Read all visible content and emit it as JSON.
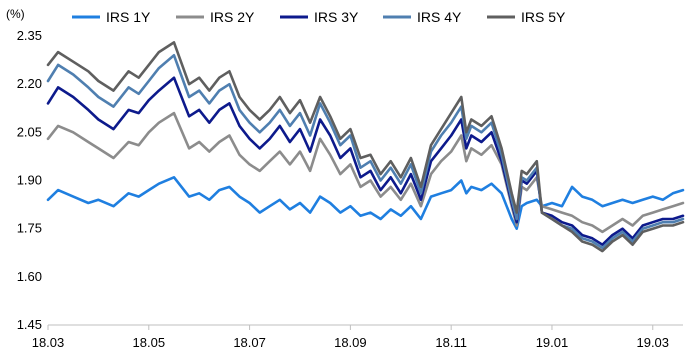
{
  "chart_data": {
    "type": "line",
    "unit_label": "(%)",
    "yticks": [
      "2.35",
      "2.20",
      "2.05",
      "1.90",
      "1.75",
      "1.60",
      "1.45"
    ],
    "ylim": [
      1.45,
      2.35
    ],
    "xticks": [
      "18.03",
      "18.05",
      "18.07",
      "18.09",
      "18.11",
      "19.01",
      "19.03"
    ],
    "xlim": [
      0,
      12.6
    ],
    "legend_position": "top",
    "grid": false,
    "series": [
      {
        "name": "IRS 1Y",
        "color": "#1f7fe0",
        "x": [
          0,
          0.2,
          0.5,
          0.8,
          1.0,
          1.3,
          1.6,
          1.8,
          2.0,
          2.2,
          2.5,
          2.8,
          3.0,
          3.2,
          3.4,
          3.6,
          3.8,
          4.0,
          4.2,
          4.4,
          4.6,
          4.8,
          5.0,
          5.2,
          5.4,
          5.6,
          5.8,
          6.0,
          6.2,
          6.4,
          6.6,
          6.8,
          7.0,
          7.2,
          7.4,
          7.6,
          7.8,
          8.0,
          8.2,
          8.3,
          8.4,
          8.6,
          8.8,
          9.0,
          9.2,
          9.3,
          9.4,
          9.5,
          9.7,
          9.8,
          10.0,
          10.2,
          10.4,
          10.6,
          10.8,
          11.0,
          11.2,
          11.4,
          11.6,
          11.8,
          12.0,
          12.2,
          12.4,
          12.6
        ],
        "values": [
          1.84,
          1.87,
          1.85,
          1.83,
          1.84,
          1.82,
          1.86,
          1.85,
          1.87,
          1.89,
          1.91,
          1.85,
          1.86,
          1.84,
          1.87,
          1.88,
          1.85,
          1.83,
          1.8,
          1.82,
          1.84,
          1.81,
          1.83,
          1.8,
          1.85,
          1.83,
          1.8,
          1.82,
          1.79,
          1.8,
          1.78,
          1.81,
          1.79,
          1.82,
          1.78,
          1.85,
          1.86,
          1.87,
          1.9,
          1.86,
          1.88,
          1.87,
          1.89,
          1.86,
          1.78,
          1.75,
          1.82,
          1.83,
          1.84,
          1.82,
          1.83,
          1.82,
          1.88,
          1.85,
          1.84,
          1.82,
          1.83,
          1.84,
          1.83,
          1.84,
          1.85,
          1.84,
          1.86,
          1.87
        ]
      },
      {
        "name": "IRS 2Y",
        "color": "#8c8c8c",
        "x": [
          0,
          0.2,
          0.5,
          0.8,
          1.0,
          1.3,
          1.6,
          1.8,
          2.0,
          2.2,
          2.5,
          2.8,
          3.0,
          3.2,
          3.4,
          3.6,
          3.8,
          4.0,
          4.2,
          4.4,
          4.6,
          4.8,
          5.0,
          5.2,
          5.4,
          5.6,
          5.8,
          6.0,
          6.2,
          6.4,
          6.6,
          6.8,
          7.0,
          7.2,
          7.4,
          7.6,
          7.8,
          8.0,
          8.2,
          8.3,
          8.4,
          8.6,
          8.8,
          9.0,
          9.2,
          9.3,
          9.4,
          9.5,
          9.7,
          9.8,
          10.0,
          10.2,
          10.4,
          10.6,
          10.8,
          11.0,
          11.2,
          11.4,
          11.6,
          11.8,
          12.0,
          12.2,
          12.4,
          12.6
        ],
        "values": [
          2.03,
          2.07,
          2.05,
          2.02,
          2.0,
          1.97,
          2.02,
          2.01,
          2.05,
          2.08,
          2.11,
          2.0,
          2.02,
          1.99,
          2.02,
          2.04,
          1.98,
          1.95,
          1.93,
          1.96,
          1.99,
          1.95,
          1.99,
          1.93,
          2.03,
          1.98,
          1.92,
          1.95,
          1.88,
          1.9,
          1.85,
          1.88,
          1.84,
          1.89,
          1.82,
          1.92,
          1.96,
          1.99,
          2.04,
          1.96,
          2.0,
          1.98,
          2.01,
          1.95,
          1.82,
          1.76,
          1.88,
          1.87,
          1.91,
          1.82,
          1.81,
          1.8,
          1.79,
          1.77,
          1.76,
          1.74,
          1.76,
          1.78,
          1.76,
          1.79,
          1.8,
          1.81,
          1.82,
          1.83
        ]
      },
      {
        "name": "IRS 3Y",
        "color": "#0d1a8c",
        "x": [
          0,
          0.2,
          0.5,
          0.8,
          1.0,
          1.3,
          1.6,
          1.8,
          2.0,
          2.2,
          2.5,
          2.8,
          3.0,
          3.2,
          3.4,
          3.6,
          3.8,
          4.0,
          4.2,
          4.4,
          4.6,
          4.8,
          5.0,
          5.2,
          5.4,
          5.6,
          5.8,
          6.0,
          6.2,
          6.4,
          6.6,
          6.8,
          7.0,
          7.2,
          7.4,
          7.6,
          7.8,
          8.0,
          8.2,
          8.3,
          8.4,
          8.6,
          8.8,
          9.0,
          9.2,
          9.3,
          9.4,
          9.5,
          9.7,
          9.8,
          10.0,
          10.2,
          10.4,
          10.6,
          10.8,
          11.0,
          11.2,
          11.4,
          11.6,
          11.8,
          12.0,
          12.2,
          12.4,
          12.6
        ],
        "values": [
          2.14,
          2.19,
          2.16,
          2.12,
          2.09,
          2.06,
          2.12,
          2.11,
          2.15,
          2.18,
          2.22,
          2.1,
          2.12,
          2.08,
          2.12,
          2.14,
          2.07,
          2.03,
          2.0,
          2.03,
          2.07,
          2.02,
          2.06,
          1.99,
          2.09,
          2.04,
          1.97,
          2.0,
          1.91,
          1.93,
          1.87,
          1.91,
          1.86,
          1.92,
          1.84,
          1.96,
          2.0,
          2.04,
          2.09,
          2.0,
          2.04,
          2.02,
          2.05,
          1.96,
          1.83,
          1.77,
          1.9,
          1.89,
          1.93,
          1.8,
          1.79,
          1.77,
          1.76,
          1.73,
          1.72,
          1.7,
          1.73,
          1.75,
          1.72,
          1.76,
          1.77,
          1.78,
          1.78,
          1.79
        ]
      },
      {
        "name": "IRS 4Y",
        "color": "#4f7fb0",
        "x": [
          0,
          0.2,
          0.5,
          0.8,
          1.0,
          1.3,
          1.6,
          1.8,
          2.0,
          2.2,
          2.5,
          2.8,
          3.0,
          3.2,
          3.4,
          3.6,
          3.8,
          4.0,
          4.2,
          4.4,
          4.6,
          4.8,
          5.0,
          5.2,
          5.4,
          5.6,
          5.8,
          6.0,
          6.2,
          6.4,
          6.6,
          6.8,
          7.0,
          7.2,
          7.4,
          7.6,
          7.8,
          8.0,
          8.2,
          8.3,
          8.4,
          8.6,
          8.8,
          9.0,
          9.2,
          9.3,
          9.4,
          9.5,
          9.7,
          9.8,
          10.0,
          10.2,
          10.4,
          10.6,
          10.8,
          11.0,
          11.2,
          11.4,
          11.6,
          11.8,
          12.0,
          12.2,
          12.4,
          12.6
        ],
        "values": [
          2.21,
          2.26,
          2.23,
          2.19,
          2.16,
          2.13,
          2.19,
          2.17,
          2.21,
          2.25,
          2.29,
          2.16,
          2.18,
          2.14,
          2.18,
          2.2,
          2.12,
          2.08,
          2.05,
          2.08,
          2.12,
          2.07,
          2.11,
          2.04,
          2.14,
          2.08,
          2.01,
          2.04,
          1.94,
          1.96,
          1.9,
          1.94,
          1.89,
          1.95,
          1.86,
          1.99,
          2.04,
          2.08,
          2.13,
          2.03,
          2.07,
          2.05,
          2.08,
          1.98,
          1.84,
          1.78,
          1.91,
          1.9,
          1.94,
          1.8,
          1.78,
          1.76,
          1.75,
          1.72,
          1.71,
          1.69,
          1.72,
          1.74,
          1.71,
          1.75,
          1.76,
          1.77,
          1.77,
          1.78
        ]
      },
      {
        "name": "IRS 5Y",
        "color": "#5f5f5f",
        "x": [
          0,
          0.2,
          0.5,
          0.8,
          1.0,
          1.3,
          1.6,
          1.8,
          2.0,
          2.2,
          2.5,
          2.8,
          3.0,
          3.2,
          3.4,
          3.6,
          3.8,
          4.0,
          4.2,
          4.4,
          4.6,
          4.8,
          5.0,
          5.2,
          5.4,
          5.6,
          5.8,
          6.0,
          6.2,
          6.4,
          6.6,
          6.8,
          7.0,
          7.2,
          7.4,
          7.6,
          7.8,
          8.0,
          8.2,
          8.3,
          8.4,
          8.6,
          8.8,
          9.0,
          9.2,
          9.3,
          9.4,
          9.5,
          9.7,
          9.8,
          10.0,
          10.2,
          10.4,
          10.6,
          10.8,
          11.0,
          11.2,
          11.4,
          11.6,
          11.8,
          12.0,
          12.2,
          12.4,
          12.6
        ],
        "values": [
          2.26,
          2.3,
          2.27,
          2.24,
          2.21,
          2.18,
          2.24,
          2.22,
          2.26,
          2.3,
          2.33,
          2.2,
          2.22,
          2.18,
          2.22,
          2.24,
          2.16,
          2.12,
          2.09,
          2.12,
          2.16,
          2.11,
          2.15,
          2.08,
          2.16,
          2.1,
          2.03,
          2.06,
          1.97,
          1.98,
          1.92,
          1.96,
          1.91,
          1.97,
          1.88,
          2.01,
          2.06,
          2.11,
          2.16,
          2.05,
          2.09,
          2.07,
          2.1,
          2.0,
          1.86,
          1.8,
          1.93,
          1.92,
          1.96,
          1.8,
          1.78,
          1.76,
          1.74,
          1.71,
          1.7,
          1.68,
          1.71,
          1.73,
          1.7,
          1.74,
          1.75,
          1.76,
          1.76,
          1.77
        ]
      }
    ]
  }
}
